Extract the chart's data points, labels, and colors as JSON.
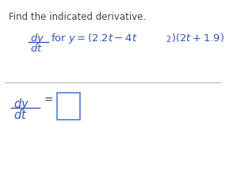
{
  "title_text": "Find the indicated derivative.",
  "title_color": "#444444",
  "title_fontsize": 8.5,
  "math_color": "#3355bb",
  "dark_color": "#444444",
  "background_color": "#ffffff",
  "line_color": "#aaaaaa",
  "box_edge_color": "#4477cc",
  "figsize": [
    2.84,
    2.17
  ],
  "dpi": 100
}
